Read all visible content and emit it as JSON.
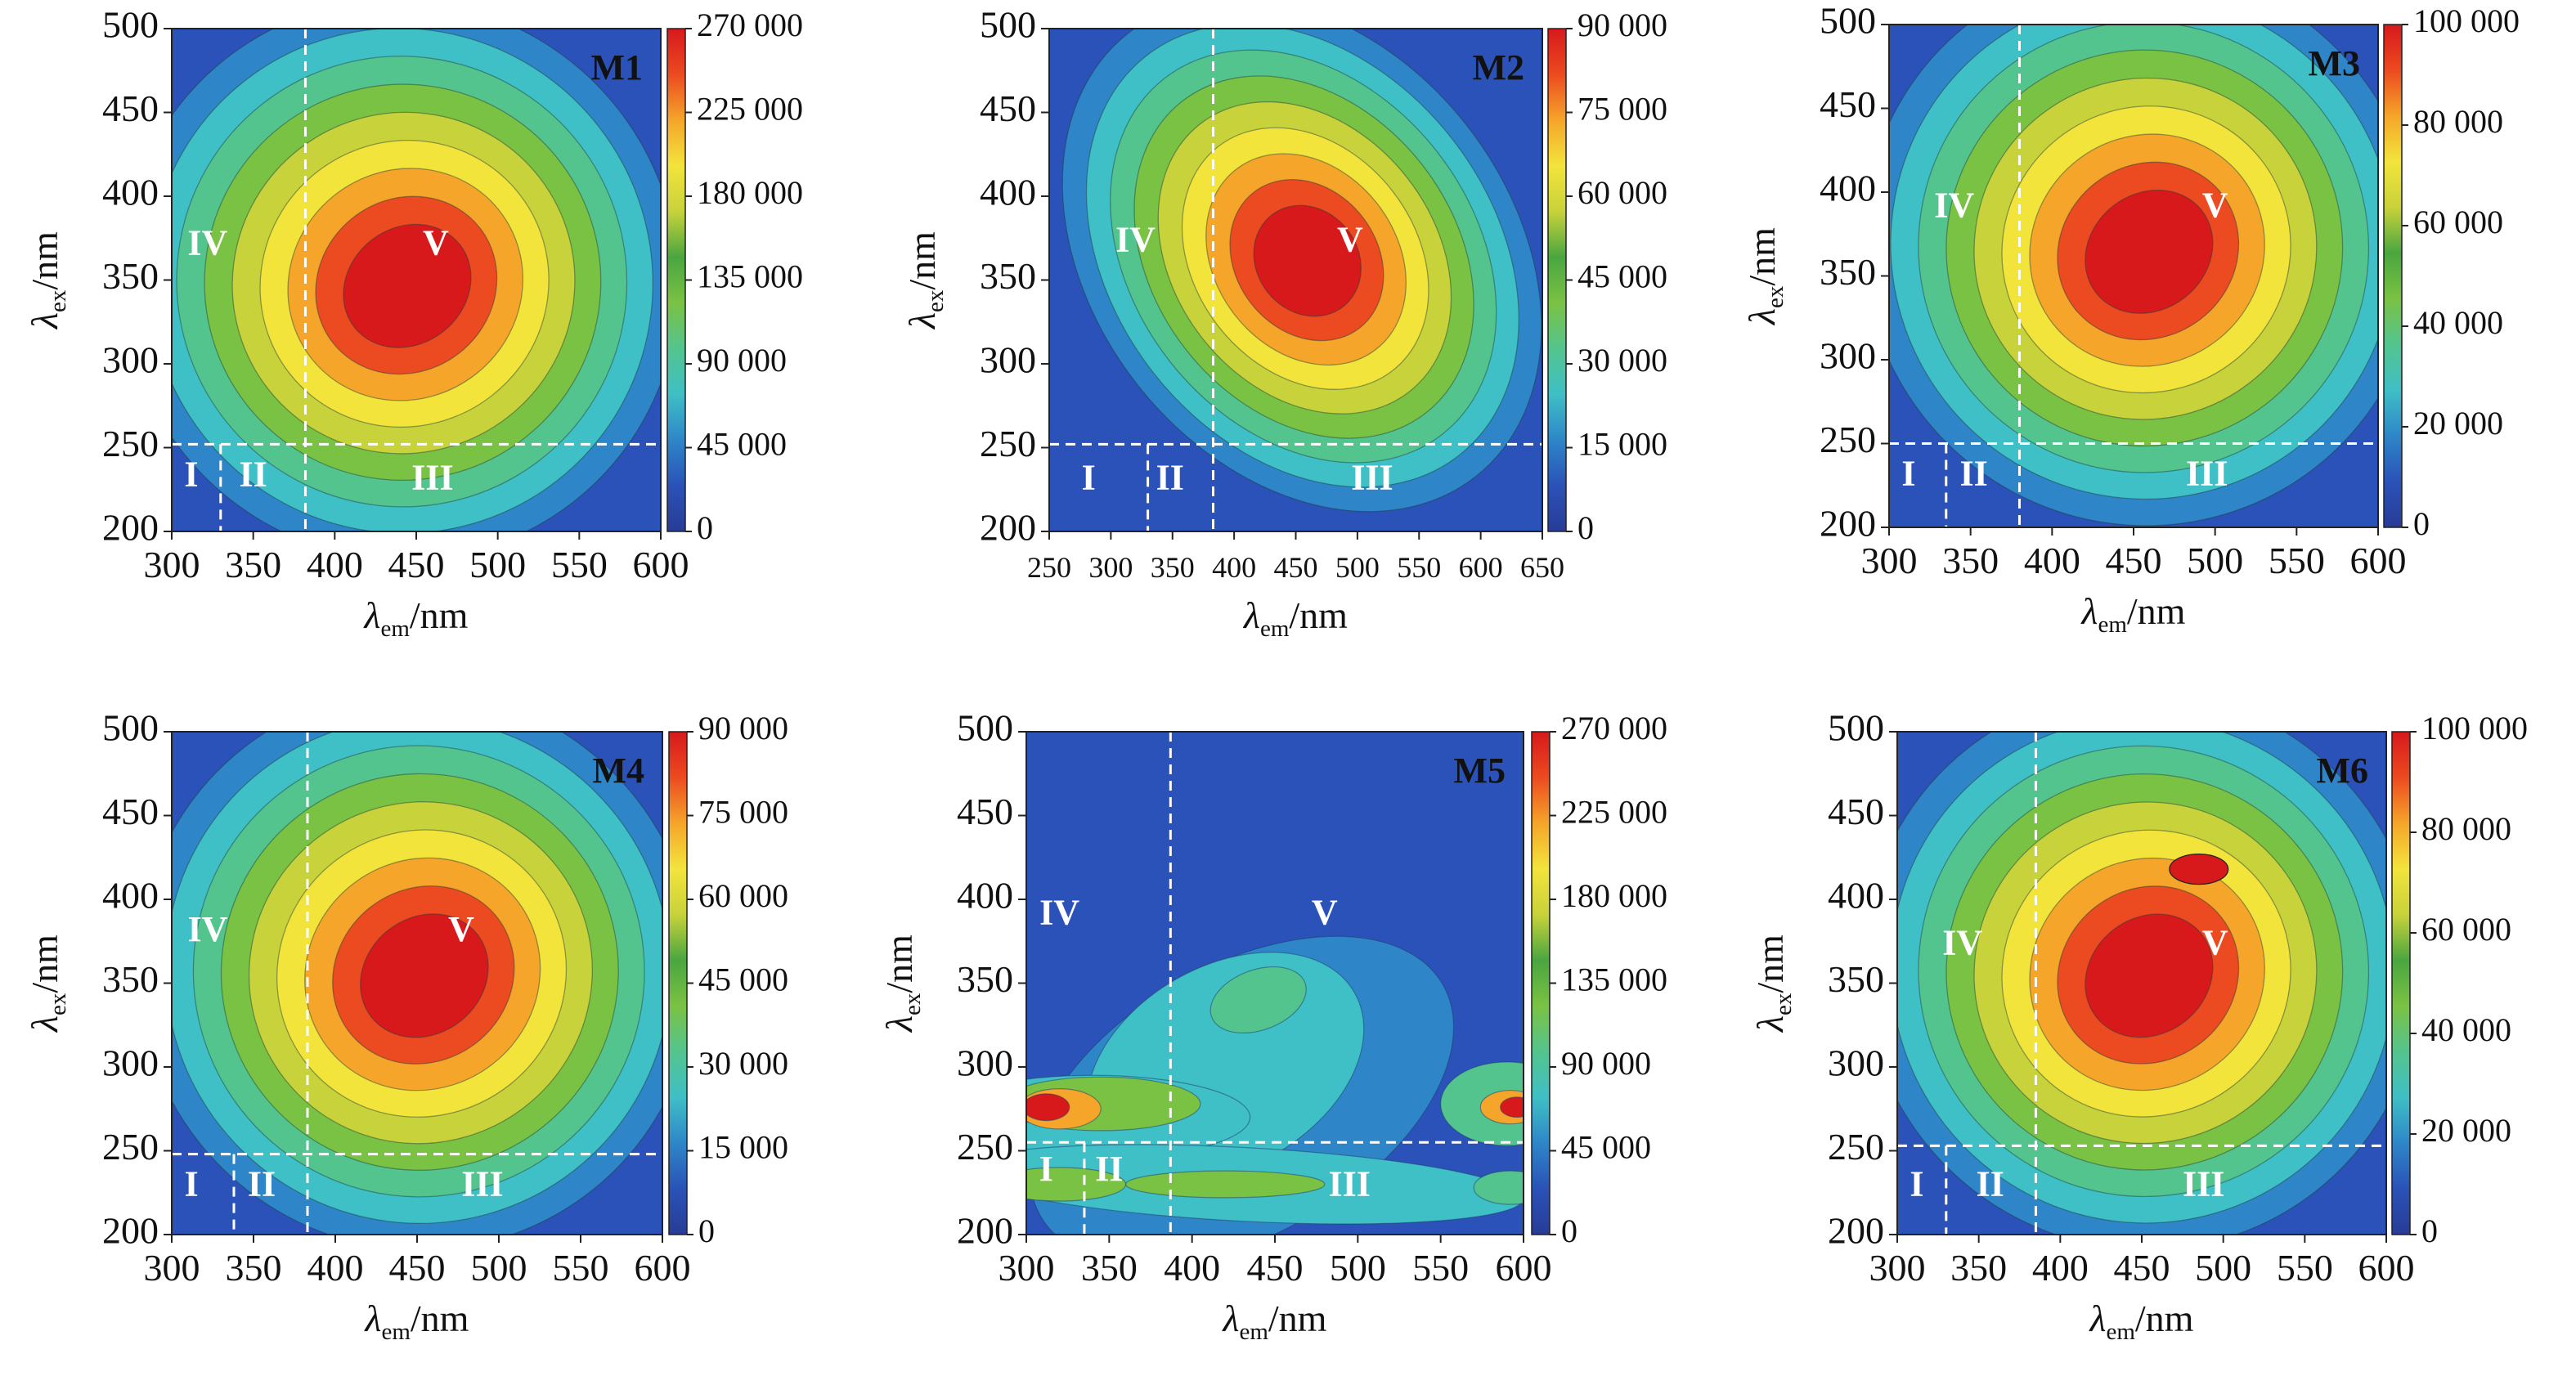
{
  "figure": {
    "x_axis_label": "λem/nm",
    "y_axis_label": "λex/nm",
    "region_labels": [
      "I",
      "II",
      "III",
      "IV",
      "V"
    ]
  },
  "colormap": [
    "#283c96",
    "#2a52b8",
    "#2e86c8",
    "#3fbfc6",
    "#54c48e",
    "#7ac243",
    "#4aa640",
    "#c8d23a",
    "#f3e43c",
    "#f5a52a",
    "#ec4a20",
    "#d7191c"
  ],
  "chart_data": [
    {
      "type": "heatmap",
      "title": "M1",
      "xlabel": "λem/nm",
      "ylabel": "λex/nm",
      "xlim": [
        300,
        600
      ],
      "ylim": [
        200,
        500
      ],
      "xticks": [
        "300",
        "350",
        "400",
        "450",
        "500",
        "550",
        "600"
      ],
      "yticks": [
        "200",
        "250",
        "300",
        "350",
        "400",
        "450",
        "500"
      ],
      "colorbar": {
        "min": 0,
        "max": 270000,
        "ticks": [
          "0",
          "45 000",
          "90 000",
          "135 000",
          "180 000",
          "225 000",
          "270 000"
        ]
      },
      "dividers": {
        "x": [
          330,
          382
        ],
        "y": 252
      },
      "region_label_positions": [
        {
          "label": "I",
          "x": 312,
          "y": 232
        },
        {
          "label": "II",
          "x": 350,
          "y": 232
        },
        {
          "label": "III",
          "x": 460,
          "y": 230
        },
        {
          "label": "IV",
          "x": 322,
          "y": 370
        },
        {
          "label": "V",
          "x": 462,
          "y": 370
        }
      ],
      "peaks": [
        {
          "ex": 350,
          "em": 440,
          "intensity": 260000
        }
      ]
    },
    {
      "type": "heatmap",
      "title": "M2",
      "xlabel": "λem/nm",
      "ylabel": "λex/nm",
      "xlim": [
        250,
        650
      ],
      "ylim": [
        200,
        500
      ],
      "xticks": [
        "250",
        "300",
        "350",
        "400",
        "450",
        "500",
        "550",
        "600",
        "650"
      ],
      "yticks": [
        "200",
        "250",
        "300",
        "350",
        "400",
        "450",
        "500"
      ],
      "colorbar": {
        "min": 0,
        "max": 90000,
        "ticks": [
          "0",
          "15 000",
          "30 000",
          "45 000",
          "60 000",
          "75 000",
          "90 000"
        ]
      },
      "dividers": {
        "x": [
          330,
          383
        ],
        "y": 252
      },
      "region_label_positions": [
        {
          "label": "I",
          "x": 282,
          "y": 230
        },
        {
          "label": "II",
          "x": 348,
          "y": 230
        },
        {
          "label": "III",
          "x": 512,
          "y": 230
        },
        {
          "label": "IV",
          "x": 320,
          "y": 372
        },
        {
          "label": "V",
          "x": 494,
          "y": 372
        }
      ],
      "peaks": [
        {
          "ex": 365,
          "em": 455,
          "intensity": 88000
        }
      ]
    },
    {
      "type": "heatmap",
      "title": "M3",
      "xlabel": "λem/nm",
      "ylabel": "λex/nm",
      "xlim": [
        300,
        600
      ],
      "ylim": [
        200,
        500
      ],
      "xticks": [
        "300",
        "350",
        "400",
        "450",
        "500",
        "550",
        "600"
      ],
      "yticks": [
        "200",
        "250",
        "300",
        "350",
        "400",
        "450",
        "500"
      ],
      "colorbar": {
        "min": 0,
        "max": 100000,
        "ticks": [
          "0",
          "20 000",
          "40 000",
          "60 000",
          "80 000",
          "100 000"
        ]
      },
      "dividers": {
        "x": [
          335,
          380
        ],
        "y": 250
      },
      "region_label_positions": [
        {
          "label": "I",
          "x": 312,
          "y": 230
        },
        {
          "label": "II",
          "x": 352,
          "y": 230
        },
        {
          "label": "III",
          "x": 495,
          "y": 230
        },
        {
          "label": "IV",
          "x": 340,
          "y": 390
        },
        {
          "label": "V",
          "x": 500,
          "y": 390
        }
      ],
      "peaks": [
        {
          "ex": 368,
          "em": 455,
          "intensity": 98000
        }
      ]
    },
    {
      "type": "heatmap",
      "title": "M4",
      "xlabel": "λem/nm",
      "ylabel": "λex/nm",
      "xlim": [
        300,
        600
      ],
      "ylim": [
        200,
        500
      ],
      "xticks": [
        "300",
        "350",
        "400",
        "450",
        "500",
        "550",
        "600"
      ],
      "yticks": [
        "200",
        "250",
        "300",
        "350",
        "400",
        "450",
        "500"
      ],
      "colorbar": {
        "min": 0,
        "max": 90000,
        "ticks": [
          "0",
          "15 000",
          "30 000",
          "45 000",
          "60 000",
          "75 000",
          "90 000"
        ]
      },
      "dividers": {
        "x": [
          338,
          383
        ],
        "y": 248
      },
      "region_label_positions": [
        {
          "label": "I",
          "x": 312,
          "y": 228
        },
        {
          "label": "II",
          "x": 355,
          "y": 228
        },
        {
          "label": "III",
          "x": 490,
          "y": 228
        },
        {
          "label": "IV",
          "x": 322,
          "y": 380
        },
        {
          "label": "V",
          "x": 477,
          "y": 380
        }
      ],
      "peaks": [
        {
          "ex": 358,
          "em": 450,
          "intensity": 88000
        }
      ]
    },
    {
      "type": "heatmap",
      "title": "M5",
      "xlabel": "λem/nm",
      "ylabel": "λex/nm",
      "xlim": [
        300,
        600
      ],
      "ylim": [
        200,
        500
      ],
      "xticks": [
        "300",
        "350",
        "400",
        "450",
        "500",
        "550",
        "600"
      ],
      "yticks": [
        "200",
        "250",
        "300",
        "350",
        "400",
        "450",
        "500"
      ],
      "colorbar": {
        "min": 0,
        "max": 270000,
        "ticks": [
          "0",
          "45 000",
          "90 000",
          "135 000",
          "180 000",
          "225 000",
          "270 000"
        ]
      },
      "dividers": {
        "x": [
          335,
          387
        ],
        "y": 255
      },
      "region_label_positions": [
        {
          "label": "I",
          "x": 312,
          "y": 237
        },
        {
          "label": "II",
          "x": 350,
          "y": 237
        },
        {
          "label": "III",
          "x": 495,
          "y": 228
        },
        {
          "label": "IV",
          "x": 320,
          "y": 390
        },
        {
          "label": "V",
          "x": 480,
          "y": 390
        }
      ],
      "peaks": [
        {
          "ex": 275,
          "em": 310,
          "intensity": 262000
        },
        {
          "ex": 275,
          "em": 592,
          "intensity": 262000
        }
      ]
    },
    {
      "type": "heatmap",
      "title": "M6",
      "xlabel": "λem/nm",
      "ylabel": "λex/nm",
      "xlim": [
        300,
        600
      ],
      "ylim": [
        200,
        500
      ],
      "xticks": [
        "300",
        "350",
        "400",
        "450",
        "500",
        "550",
        "600"
      ],
      "yticks": [
        "200",
        "250",
        "300",
        "350",
        "400",
        "450",
        "500"
      ],
      "colorbar": {
        "min": 0,
        "max": 100000,
        "ticks": [
          "0",
          "20 000",
          "40 000",
          "60 000",
          "80 000",
          "100 000"
        ]
      },
      "dividers": {
        "x": [
          330,
          385
        ],
        "y": 253
      },
      "region_label_positions": [
        {
          "label": "I",
          "x": 312,
          "y": 228
        },
        {
          "label": "II",
          "x": 357,
          "y": 228
        },
        {
          "label": "III",
          "x": 488,
          "y": 228
        },
        {
          "label": "IV",
          "x": 340,
          "y": 372
        },
        {
          "label": "V",
          "x": 495,
          "y": 372
        }
      ],
      "peaks": [
        {
          "ex": 358,
          "em": 450,
          "intensity": 98000
        },
        {
          "ex": 418,
          "em": 485,
          "intensity": 90000
        }
      ]
    }
  ]
}
